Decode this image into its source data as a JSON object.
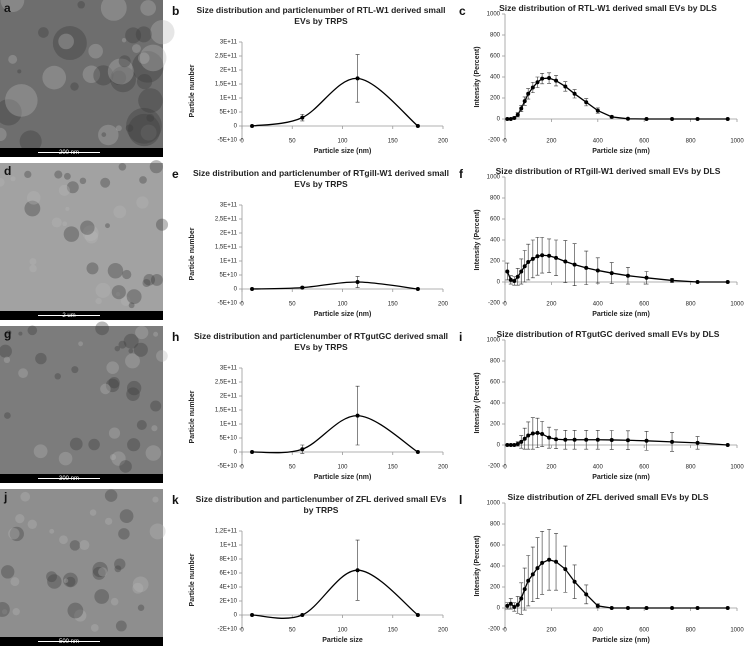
{
  "images": [
    {
      "label": "a",
      "scale_bar": "200 nm",
      "tone": "#6e6e6e"
    },
    {
      "label": "d",
      "scale_bar": "2 um",
      "tone": "#a2a2a2"
    },
    {
      "label": "g",
      "scale_bar": "300 nm",
      "tone": "#7c7c7c"
    },
    {
      "label": "j",
      "scale_bar": "500 nm",
      "tone": "#8e8e8e"
    }
  ],
  "chart_data": [
    {
      "type": "line",
      "label": "b",
      "smooth": true,
      "title": "Size distribution and particlenumber of RTL-W1 derived small EVs by TRPS",
      "x_label": "Particle size (nm)",
      "y_label": "Particle number",
      "color": "#000000",
      "x": [
        10,
        60,
        115,
        175
      ],
      "values": [
        0,
        30000000000,
        170000000000,
        0
      ],
      "errors": [
        0,
        12000000000,
        85000000000,
        0
      ],
      "xlim": [
        0,
        200
      ],
      "xticks": [
        0,
        50,
        100,
        150,
        200
      ],
      "ylim": [
        -50000000000,
        300000000000
      ],
      "yticks": [
        {
          "value": -50000000000,
          "label": "-5E+10"
        },
        0,
        {
          "value": 50000000000,
          "label": "5E+10"
        },
        {
          "value": 100000000000,
          "label": "1E+11"
        },
        {
          "value": 150000000000,
          "label": "1,5E+11"
        },
        {
          "value": 200000000000,
          "label": "2E+11"
        },
        {
          "value": 250000000000,
          "label": "2,5E+11"
        },
        {
          "value": 300000000000,
          "label": "3E+11"
        }
      ]
    },
    {
      "type": "line",
      "label": "c",
      "smooth": false,
      "title": "Size distribution of RTL-W1 derived small EVs by DLS",
      "x_label": "Particle size (nm)",
      "y_label": "Intensity (Percent)",
      "color": "#000000",
      "x": [
        10,
        25,
        40,
        55,
        70,
        85,
        100,
        120,
        140,
        160,
        190,
        220,
        260,
        300,
        350,
        400,
        460,
        530,
        610,
        720,
        830,
        960
      ],
      "values": [
        0,
        0,
        10,
        40,
        100,
        170,
        240,
        300,
        350,
        385,
        390,
        365,
        310,
        240,
        160,
        80,
        20,
        2,
        0,
        0,
        0,
        0
      ],
      "errors": [
        0,
        0,
        10,
        20,
        30,
        40,
        50,
        50,
        50,
        50,
        50,
        50,
        45,
        40,
        35,
        25,
        10,
        0,
        0,
        0,
        0,
        0
      ],
      "xlim": [
        0,
        1000
      ],
      "xticks": [
        0,
        200,
        400,
        600,
        800,
        1000
      ],
      "ylim": [
        -200,
        1000
      ],
      "yticks": [
        -200,
        0,
        200,
        400,
        600,
        800,
        1000
      ]
    },
    {
      "type": "line",
      "label": "e",
      "smooth": true,
      "title": "Size distribution and particlenumber of RTgill-W1 derived small EVs by TRPS",
      "x_label": "Particle size (nm)",
      "y_label": "Particle number",
      "color": "#000000",
      "x": [
        10,
        60,
        115,
        175
      ],
      "values": [
        0,
        5000000000,
        25000000000,
        0
      ],
      "errors": [
        0,
        3000000000,
        20000000000,
        0
      ],
      "xlim": [
        0,
        200
      ],
      "xticks": [
        0,
        50,
        100,
        150,
        200
      ],
      "ylim": [
        -50000000000,
        300000000000
      ],
      "yticks": [
        {
          "value": -50000000000,
          "label": "-5E+10"
        },
        0,
        {
          "value": 50000000000,
          "label": "5E+10"
        },
        {
          "value": 100000000000,
          "label": "1E+11"
        },
        {
          "value": 150000000000,
          "label": "1,5E+11"
        },
        {
          "value": 200000000000,
          "label": "2E+11"
        },
        {
          "value": 250000000000,
          "label": "2,5E+11"
        },
        {
          "value": 300000000000,
          "label": "3E+11"
        }
      ]
    },
    {
      "type": "line",
      "label": "f",
      "smooth": false,
      "title": "Size distribution of RTgill-W1 derived small EVs by DLS",
      "x_label": "Particle size (nm)",
      "y_label": "Intensity (Percent)",
      "color": "#000000",
      "x": [
        10,
        25,
        40,
        55,
        70,
        85,
        100,
        120,
        140,
        160,
        190,
        220,
        260,
        300,
        350,
        400,
        460,
        530,
        610,
        720,
        830,
        960
      ],
      "values": [
        100,
        20,
        10,
        50,
        100,
        150,
        190,
        220,
        245,
        255,
        250,
        230,
        195,
        165,
        135,
        110,
        85,
        60,
        40,
        15,
        0,
        0
      ],
      "errors": [
        80,
        40,
        40,
        80,
        120,
        150,
        170,
        180,
        180,
        170,
        160,
        170,
        200,
        200,
        160,
        120,
        100,
        80,
        60,
        20,
        0,
        0
      ],
      "xlim": [
        0,
        1000
      ],
      "xticks": [
        0,
        200,
        400,
        600,
        800,
        1000
      ],
      "ylim": [
        -200,
        1000
      ],
      "yticks": [
        -200,
        0,
        200,
        400,
        600,
        800,
        1000
      ]
    },
    {
      "type": "line",
      "label": "h",
      "smooth": true,
      "title": "Size distribution and particlenumber of RTgutGC derived small EVs by TRPS",
      "x_label": "Particle size (nm)",
      "y_label": "Particle number",
      "color": "#000000",
      "x": [
        10,
        60,
        115,
        175
      ],
      "values": [
        0,
        10000000000,
        130000000000,
        0
      ],
      "errors": [
        0,
        15000000000,
        105000000000,
        0
      ],
      "xlim": [
        0,
        200
      ],
      "xticks": [
        0,
        50,
        100,
        150,
        200
      ],
      "ylim": [
        -50000000000,
        300000000000
      ],
      "yticks": [
        {
          "value": -50000000000,
          "label": "-5E+10"
        },
        0,
        {
          "value": 50000000000,
          "label": "5E+10"
        },
        {
          "value": 100000000000,
          "label": "1E+11"
        },
        {
          "value": 150000000000,
          "label": "1,5E+11"
        },
        {
          "value": 200000000000,
          "label": "2E+11"
        },
        {
          "value": 250000000000,
          "label": "2,5E+11"
        },
        {
          "value": 300000000000,
          "label": "3E+11"
        }
      ]
    },
    {
      "type": "line",
      "label": "i",
      "smooth": false,
      "title": "Size distribution of RTgutGC derived small EVs by DLS",
      "x_label": "Particle size (nm)",
      "y_label": "Intensity (Percent)",
      "color": "#000000",
      "x": [
        10,
        25,
        40,
        55,
        70,
        85,
        100,
        120,
        140,
        160,
        190,
        220,
        260,
        300,
        350,
        400,
        460,
        530,
        610,
        720,
        830,
        960
      ],
      "values": [
        0,
        0,
        0,
        10,
        30,
        60,
        90,
        110,
        115,
        105,
        70,
        55,
        50,
        50,
        50,
        50,
        48,
        45,
        40,
        30,
        20,
        0
      ],
      "errors": [
        0,
        0,
        0,
        20,
        60,
        100,
        130,
        150,
        140,
        120,
        100,
        90,
        90,
        90,
        90,
        90,
        90,
        90,
        90,
        90,
        60,
        0
      ],
      "xlim": [
        0,
        1000
      ],
      "xticks": [
        0,
        200,
        400,
        600,
        800,
        1000
      ],
      "ylim": [
        -200,
        1000
      ],
      "yticks": [
        -200,
        0,
        200,
        400,
        600,
        800,
        1000
      ]
    },
    {
      "type": "line",
      "label": "k",
      "smooth": true,
      "title": "Size distribution and particlenumber of ZFL derived small EVs by TRPS",
      "x_label": "Particle size",
      "y_label": "Particle number",
      "color": "#000000",
      "x": [
        10,
        60,
        115,
        175
      ],
      "values": [
        0,
        0,
        64000000000,
        0
      ],
      "errors": [
        0,
        0,
        43000000000,
        0
      ],
      "xlim": [
        0,
        200
      ],
      "xticks": [
        0,
        50,
        100,
        150,
        200
      ],
      "ylim": [
        -20000000000,
        120000000000
      ],
      "yticks": [
        {
          "value": -20000000000,
          "label": "-2E+10"
        },
        0,
        {
          "value": 20000000000,
          "label": "2E+10"
        },
        {
          "value": 40000000000,
          "label": "4E+10"
        },
        {
          "value": 60000000000,
          "label": "6E+10"
        },
        {
          "value": 80000000000,
          "label": "8E+10"
        },
        {
          "value": 100000000000,
          "label": "1E+11"
        },
        {
          "value": 120000000000,
          "label": "1,2E+11"
        }
      ]
    },
    {
      "type": "line",
      "label": "l",
      "smooth": false,
      "title": "Size distribution of ZFL derived small EVs by DLS",
      "x_label": "Particle size (nm)",
      "y_label": "Intensity (Percent)",
      "color": "#000000",
      "x": [
        10,
        25,
        40,
        55,
        70,
        85,
        100,
        120,
        140,
        160,
        190,
        220,
        260,
        300,
        350,
        400,
        460,
        530,
        610,
        720,
        830,
        960
      ],
      "values": [
        20,
        40,
        10,
        30,
        90,
        180,
        260,
        320,
        380,
        430,
        460,
        440,
        370,
        250,
        130,
        20,
        0,
        0,
        0,
        0,
        0,
        0
      ],
      "errors": [
        30,
        50,
        40,
        80,
        150,
        200,
        240,
        260,
        290,
        300,
        290,
        270,
        220,
        160,
        90,
        20,
        0,
        0,
        0,
        0,
        0,
        0
      ],
      "xlim": [
        0,
        1000
      ],
      "xticks": [
        0,
        200,
        400,
        600,
        800,
        1000
      ],
      "ylim": [
        -200,
        1000
      ],
      "yticks": [
        -200,
        0,
        200,
        400,
        600,
        800,
        1000
      ]
    }
  ]
}
